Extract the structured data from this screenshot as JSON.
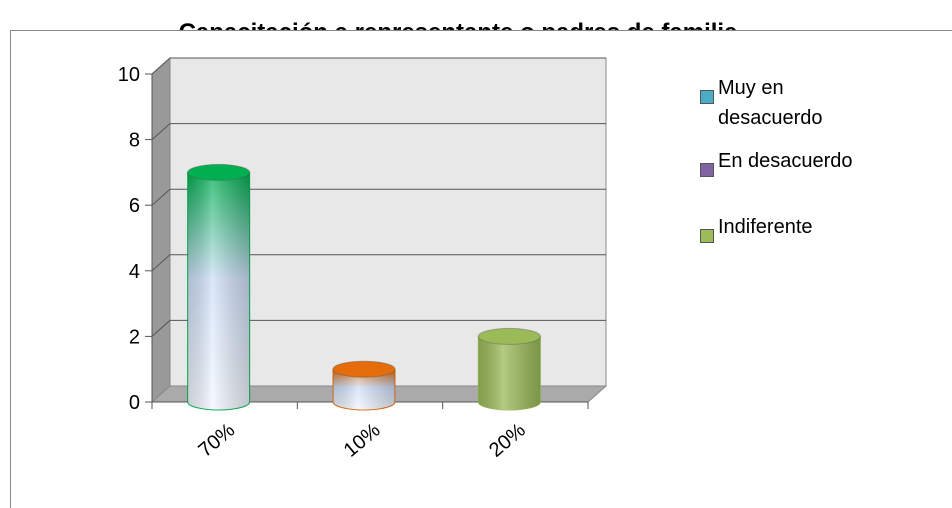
{
  "chart_data": {
    "type": "bar3d",
    "title": "Capacitación a representante o padres de familia",
    "categories": [
      "70%",
      "10%",
      "20%"
    ],
    "values": [
      7,
      1,
      2
    ],
    "bar_colors": [
      "#00b050",
      "#e46c0a",
      "#9bbb59"
    ],
    "ylim": [
      0,
      10
    ],
    "yticks": [
      0,
      2,
      4,
      6,
      8,
      10
    ],
    "grid": true,
    "legend": [
      {
        "name": "Muy en desacuerdo",
        "color": "#4bacc6"
      },
      {
        "name": "En desacuerdo",
        "color": "#8064a2"
      },
      {
        "name": "Indiferente",
        "color": "#9bbb59"
      }
    ],
    "legend_position": "right"
  }
}
